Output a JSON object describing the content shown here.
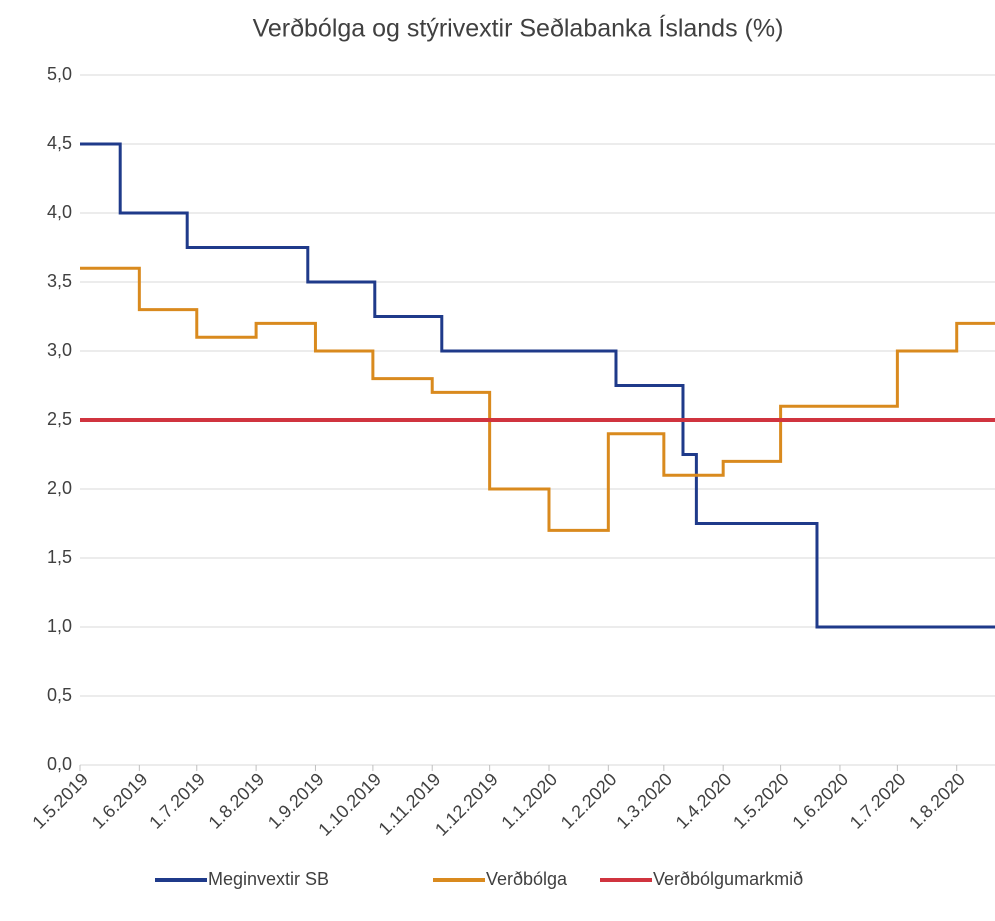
{
  "chart_data": {
    "type": "line",
    "step": true,
    "title": "Verðbólga og stýrivextir Seðlabanka Íslands (%)",
    "xlim": [
      "2019-05-01",
      "2020-08-21"
    ],
    "xticks": [
      {
        "value": "2019-05-01",
        "label": "1.5.2019"
      },
      {
        "value": "2019-06-01",
        "label": "1.6.2019"
      },
      {
        "value": "2019-07-01",
        "label": "1.7.2019"
      },
      {
        "value": "2019-08-01",
        "label": "1.8.2019"
      },
      {
        "value": "2019-09-01",
        "label": "1.9.2019"
      },
      {
        "value": "2019-10-01",
        "label": "1.10.2019"
      },
      {
        "value": "2019-11-01",
        "label": "1.11.2019"
      },
      {
        "value": "2019-12-01",
        "label": "1.12.2019"
      },
      {
        "value": "2020-01-01",
        "label": "1.1.2020"
      },
      {
        "value": "2020-02-01",
        "label": "1.2.2020"
      },
      {
        "value": "2020-03-01",
        "label": "1.3.2020"
      },
      {
        "value": "2020-04-01",
        "label": "1.4.2020"
      },
      {
        "value": "2020-05-01",
        "label": "1.5.2020"
      },
      {
        "value": "2020-06-01",
        "label": "1.6.2020"
      },
      {
        "value": "2020-07-01",
        "label": "1.7.2020"
      },
      {
        "value": "2020-08-01",
        "label": "1.8.2020"
      }
    ],
    "ylim": [
      0,
      5
    ],
    "yticks": [
      {
        "value": 0,
        "label": "0,0"
      },
      {
        "value": 0.5,
        "label": "0,5"
      },
      {
        "value": 1,
        "label": "1,0"
      },
      {
        "value": 1.5,
        "label": "1,5"
      },
      {
        "value": 2,
        "label": "2,0"
      },
      {
        "value": 2.5,
        "label": "2,5"
      },
      {
        "value": 3,
        "label": "3,0"
      },
      {
        "value": 3.5,
        "label": "3,5"
      },
      {
        "value": 4,
        "label": "4,0"
      },
      {
        "value": 4.5,
        "label": "4,5"
      },
      {
        "value": 5,
        "label": "5,0"
      }
    ],
    "grid": true,
    "legend": "bottom",
    "series": [
      {
        "name": "Meginvextir SB",
        "color": "#1f3a8a",
        "x": [
          "2019-05-01",
          "2019-05-22",
          "2019-06-26",
          "2019-08-28",
          "2019-10-02",
          "2019-11-06",
          "2020-02-05",
          "2020-03-11",
          "2020-03-18",
          "2020-05-20",
          "2020-08-21"
        ],
        "values": [
          4.5,
          4.0,
          3.75,
          3.5,
          3.25,
          3.0,
          2.75,
          2.25,
          1.75,
          1.0,
          1.0
        ]
      },
      {
        "name": "Verðbólga",
        "color": "#d98a1e",
        "x": [
          "2019-05-01",
          "2019-06-01",
          "2019-07-01",
          "2019-08-01",
          "2019-09-01",
          "2019-10-01",
          "2019-11-01",
          "2019-12-01",
          "2020-01-01",
          "2020-02-01",
          "2020-03-01",
          "2020-04-01",
          "2020-05-01",
          "2020-07-01",
          "2020-08-01",
          "2020-08-21"
        ],
        "values": [
          3.6,
          3.3,
          3.1,
          3.2,
          3.0,
          2.8,
          2.7,
          2.0,
          1.7,
          2.4,
          2.1,
          2.2,
          2.6,
          3.0,
          3.2,
          3.2
        ]
      },
      {
        "name": "Verðbólgumarkmið",
        "color": "#d0343f",
        "x": [
          "2019-05-01",
          "2020-08-21"
        ],
        "values": [
          2.5,
          2.5
        ]
      }
    ]
  }
}
